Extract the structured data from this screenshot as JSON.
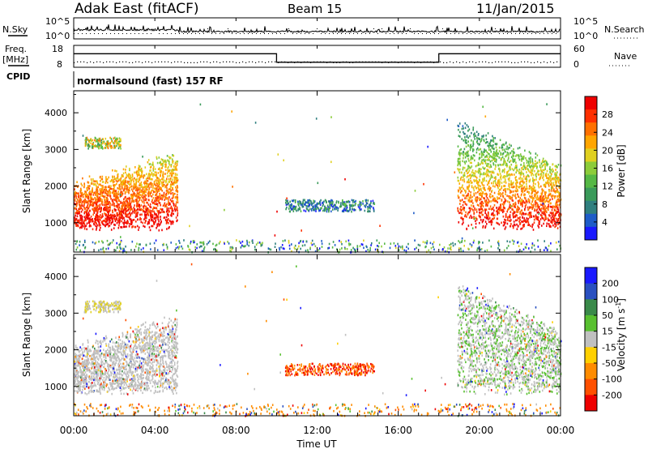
{
  "header": {
    "station": "Adak East (fitACF)",
    "beam": "Beam 15",
    "date": "11/Jan/2015"
  },
  "labels": {
    "nsky": "N.Sky",
    "nsearch": "N.Search",
    "freq_line1": "Freq.",
    "freq_line2": "[MHz]",
    "nave": "Nave",
    "cpid": "CPID",
    "program": "normalsound (fast) 157 RF"
  },
  "chart_data": [
    {
      "type": "line",
      "name": "noise",
      "left_ticks": [
        "10^5",
        "10^0"
      ],
      "right_ticks": [
        "10^5",
        "10^0"
      ],
      "left_label": "N.Sky",
      "right_label": "N.Search"
    },
    {
      "type": "line",
      "name": "frequency",
      "left_ticks": [
        "18",
        "8"
      ],
      "right_ticks": [
        "60",
        "0"
      ],
      "ylim_left": [
        8,
        18
      ],
      "ylim_right": [
        0,
        60
      ],
      "freq_segments": [
        {
          "x": [
            "00:00",
            "10:00"
          ],
          "freq_mhz": 15
        },
        {
          "x": [
            "10:00",
            "18:00"
          ],
          "freq_mhz": 10
        },
        {
          "x": [
            "18:00",
            "24:00"
          ],
          "freq_mhz": 15
        }
      ],
      "nave_approx": 15
    },
    {
      "type": "heatmap",
      "name": "power",
      "xlabel": "",
      "ylabel": "Slant Range [km]",
      "xlim": [
        "00:00",
        "24:00"
      ],
      "ylim": [
        200,
        4600
      ],
      "yticks": [
        1000,
        2000,
        3000,
        4000
      ],
      "colorbar": {
        "label": "Power [dB]",
        "ticks": [
          "4",
          "8",
          "12",
          "16",
          "20",
          "24",
          "28"
        ],
        "colors": [
          "#1a1aff",
          "#1e5cc8",
          "#2f7f7f",
          "#3a9a5a",
          "#55b845",
          "#8ccc3a",
          "#e0d020",
          "#ffa500",
          "#ff7000",
          "#ff3000",
          "#ee0000"
        ]
      },
      "regions": [
        {
          "t": [
            0.0,
            5.1
          ],
          "range_km": [
            800,
            3400
          ],
          "level": "high"
        },
        {
          "t": [
            10.4,
            14.8
          ],
          "range_km": [
            1300,
            1650
          ],
          "level": "low"
        },
        {
          "t": [
            18.9,
            24.0
          ],
          "range_km": [
            800,
            3600
          ],
          "level": "high"
        }
      ]
    },
    {
      "type": "heatmap",
      "name": "velocity",
      "xlabel": "Time UT",
      "ylabel": "Slant Range [km]",
      "xlim": [
        "00:00",
        "24:00"
      ],
      "ylim": [
        200,
        4600
      ],
      "yticks": [
        1000,
        2000,
        3000,
        4000
      ],
      "xticks": [
        "00:00",
        "04:00",
        "08:00",
        "12:00",
        "16:00",
        "20:00",
        "00:00"
      ],
      "colorbar": {
        "label": "Velocity [m s",
        "label_sup": "-1",
        "label_end": "]",
        "ticks": [
          "200",
          "100",
          "50",
          "15",
          "-15",
          "-50",
          "-100",
          "-200"
        ],
        "colors": [
          "#1a1aff",
          "#2a50c0",
          "#3a8a4a",
          "#58c030",
          "#c0c0c0",
          "#ffd000",
          "#ff8c00",
          "#ff5000",
          "#ee0000"
        ]
      },
      "regions": [
        {
          "t": [
            0.0,
            5.1
          ],
          "range_km": [
            800,
            3400
          ],
          "velocity": "near zero (grey)"
        },
        {
          "t": [
            10.4,
            14.8
          ],
          "range_km": [
            1300,
            1650
          ],
          "velocity": "-100 to -200"
        },
        {
          "t": [
            18.9,
            24.0
          ],
          "range_km": [
            800,
            3600
          ],
          "velocity": "near zero / +50"
        }
      ]
    }
  ]
}
